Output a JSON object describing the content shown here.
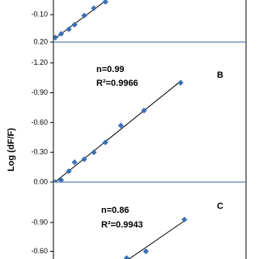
{
  "chart_data": [
    {
      "type": "scatter",
      "x": [
        0.01,
        0.04,
        0.08,
        0.11,
        0.16,
        0.21,
        0.27
      ],
      "series": [
        {
          "color": "#3a6fb5",
          "values": [
            0.15,
            0.11,
            0.06,
            0.01,
            -0.09,
            -0.17,
            -0.24
          ]
        }
      ],
      "xlim": [
        0,
        1
      ],
      "ylim": [
        0.2,
        -0.26
      ],
      "yticks": [
        {
          "value": -0.1,
          "label": "-0.10"
        },
        {
          "value": 0.2,
          "label": "0.20"
        }
      ]
    },
    {
      "type": "scatter",
      "ylabel": "Log (dF/F)",
      "panel_label": "B",
      "annotations": [
        "n=0.99",
        "R²=0.9966"
      ],
      "x": [
        0.01,
        0.04,
        0.08,
        0.11,
        0.16,
        0.21,
        0.27,
        0.35,
        0.47,
        0.66
      ],
      "series": [
        {
          "color": "#3a6fb5",
          "values": [
            0.0,
            -0.02,
            -0.11,
            -0.2,
            -0.23,
            -0.3,
            -0.4,
            -0.57,
            -0.72,
            -1.0
          ]
        }
      ],
      "xlim": [
        0,
        1
      ],
      "ylim": [
        0.0,
        -1.41
      ],
      "yticks": [
        {
          "value": 0,
          "label": "0.00"
        },
        {
          "value": -0.3,
          "label": "-0.30"
        },
        {
          "value": -0.6,
          "label": "-0.60"
        },
        {
          "value": -0.9,
          "label": "-0.90"
        },
        {
          "value": -1.2,
          "label": "-1.20"
        }
      ]
    },
    {
      "type": "scatter",
      "panel_label": "C",
      "annotations": [
        "n=0.86",
        "R²=0.9943"
      ],
      "x": [
        0.38,
        0.48,
        0.68
      ],
      "series": [
        {
          "color": "#3a6fb5",
          "values": [
            -0.53,
            -0.6,
            -0.93
          ]
        }
      ],
      "xlim": [
        0,
        1
      ],
      "ylim": [
        -0.52,
        -1.32
      ],
      "yticks": [
        {
          "value": -0.6,
          "label": "-0.60"
        },
        {
          "value": -0.9,
          "label": "-0.90"
        }
      ]
    }
  ]
}
